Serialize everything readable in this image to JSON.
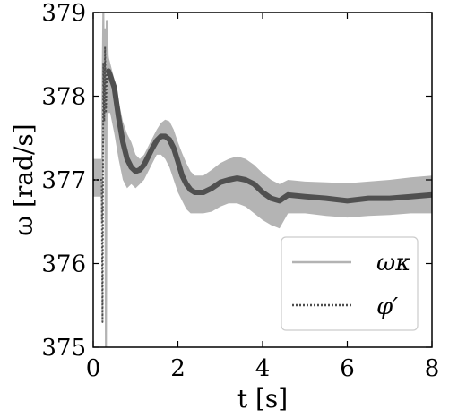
{
  "chart_data": {
    "type": "line",
    "xlabel": "t [s]",
    "ylabel": "ω [rad/s]",
    "xlim": [
      0,
      8
    ],
    "ylim": [
      375,
      379
    ],
    "xticks": [
      "0",
      "2",
      "4",
      "6",
      "8"
    ],
    "yticks": [
      "375",
      "376",
      "377",
      "378",
      "379"
    ],
    "xtick_values": [
      0,
      2,
      4,
      6,
      8
    ],
    "ytick_values": [
      375,
      376,
      377,
      378,
      379
    ],
    "legend_position": "lower-right",
    "grid": false,
    "band": {
      "color": "#b4b4b4",
      "x": [
        0,
        0.22,
        0.26,
        0.3,
        0.35,
        0.4,
        0.5,
        0.6,
        0.7,
        0.8,
        0.9,
        1.0,
        1.1,
        1.2,
        1.3,
        1.4,
        1.5,
        1.6,
        1.7,
        1.8,
        1.9,
        2.0,
        2.1,
        2.2,
        2.3,
        2.4,
        2.6,
        2.8,
        3.0,
        3.2,
        3.4,
        3.6,
        3.8,
        4.0,
        4.2,
        4.4,
        4.6,
        5.0,
        5.5,
        6.0,
        6.5,
        7.0,
        7.5,
        8.0
      ],
      "lower": [
        376.8,
        376.8,
        377.6,
        378.0,
        377.8,
        377.8,
        377.55,
        377.25,
        377.0,
        376.9,
        376.95,
        376.9,
        376.95,
        377.0,
        377.1,
        377.2,
        377.3,
        377.3,
        377.25,
        377.15,
        377.0,
        376.85,
        376.75,
        376.65,
        376.6,
        376.6,
        376.6,
        376.62,
        376.68,
        376.72,
        376.72,
        376.68,
        376.6,
        376.52,
        376.46,
        376.42,
        376.6,
        376.6,
        376.57,
        376.55,
        376.57,
        376.58,
        376.6,
        376.6
      ],
      "upper": [
        377.25,
        377.25,
        378.4,
        378.6,
        378.5,
        378.4,
        378.2,
        377.95,
        377.7,
        377.55,
        377.45,
        377.3,
        377.25,
        377.3,
        377.4,
        377.5,
        377.6,
        377.68,
        377.72,
        377.7,
        377.6,
        377.45,
        377.32,
        377.2,
        377.1,
        377.05,
        377.05,
        377.12,
        377.2,
        377.25,
        377.28,
        377.25,
        377.18,
        377.08,
        377.0,
        376.95,
        377.0,
        376.98,
        376.97,
        376.96,
        376.98,
        377.0,
        377.03,
        377.05
      ]
    },
    "series": [
      {
        "name": "ω_κ",
        "style": "solid",
        "color": "#b3b3b3",
        "x": [
          0.0,
          0.2,
          0.21,
          0.22,
          0.24,
          0.26,
          0.28,
          0.3,
          0.32,
          0.34,
          0.36,
          0.4,
          0.5,
          0.6,
          0.7,
          0.8,
          0.9,
          1.0,
          1.1,
          1.2,
          1.3,
          1.4,
          1.5,
          1.6,
          1.7,
          1.8,
          1.9,
          2.0,
          2.1,
          2.2,
          2.3,
          2.4,
          2.6,
          2.8,
          3.0,
          3.2,
          3.4,
          3.6,
          3.8,
          4.0,
          4.2,
          4.4,
          4.6,
          5.0,
          5.5,
          6.0,
          6.5,
          7.0,
          7.5,
          8.0
        ],
        "y": [
          377.0,
          377.0,
          376.5,
          378.0,
          379.0,
          377.5,
          378.8,
          375.0,
          378.9,
          378.5,
          378.3,
          378.3,
          378.15,
          377.8,
          377.45,
          377.25,
          377.15,
          377.1,
          377.12,
          377.18,
          377.28,
          377.38,
          377.47,
          377.52,
          377.52,
          377.48,
          377.38,
          377.22,
          377.05,
          376.95,
          376.88,
          376.85,
          376.85,
          376.9,
          376.97,
          377.0,
          377.02,
          377.0,
          376.95,
          376.85,
          376.78,
          376.75,
          376.82,
          376.8,
          376.78,
          376.75,
          376.78,
          376.78,
          376.8,
          376.82
        ]
      },
      {
        "name": "φ′",
        "style": "dotted",
        "color": "#4d4d4d",
        "x": [
          0.0,
          0.2,
          0.22,
          0.24,
          0.26,
          0.28,
          0.3,
          0.32,
          0.34,
          0.36,
          0.4,
          0.5,
          0.6,
          0.7,
          0.8,
          0.9,
          1.0,
          1.1,
          1.2,
          1.3,
          1.4,
          1.5,
          1.6,
          1.7,
          1.8,
          1.9,
          2.0,
          2.1,
          2.2,
          2.3,
          2.4,
          2.6,
          2.8,
          3.0,
          3.2,
          3.4,
          3.6,
          3.8,
          4.0,
          4.2,
          4.4,
          4.6,
          5.0,
          5.5,
          6.0,
          6.5,
          7.0,
          7.5,
          8.0
        ],
        "y": [
          377.0,
          377.0,
          375.3,
          378.4,
          377.7,
          378.6,
          377.8,
          378.25,
          378.3,
          378.3,
          378.25,
          378.1,
          377.75,
          377.45,
          377.25,
          377.15,
          377.1,
          377.12,
          377.18,
          377.28,
          377.38,
          377.47,
          377.52,
          377.52,
          377.48,
          377.38,
          377.22,
          377.05,
          376.95,
          376.88,
          376.85,
          376.85,
          376.9,
          376.97,
          377.0,
          377.02,
          377.0,
          376.95,
          376.85,
          376.78,
          376.75,
          376.82,
          376.8,
          376.78,
          376.75,
          376.78,
          376.78,
          376.8,
          376.82
        ]
      }
    ],
    "overlay_color": "#505050",
    "legend": {
      "entries": [
        {
          "label": "ωκ",
          "style": "solid",
          "color": "#b3b3b3"
        },
        {
          "label": "φ′",
          "style": "dotted",
          "color": "#4d4d4d"
        }
      ]
    }
  }
}
